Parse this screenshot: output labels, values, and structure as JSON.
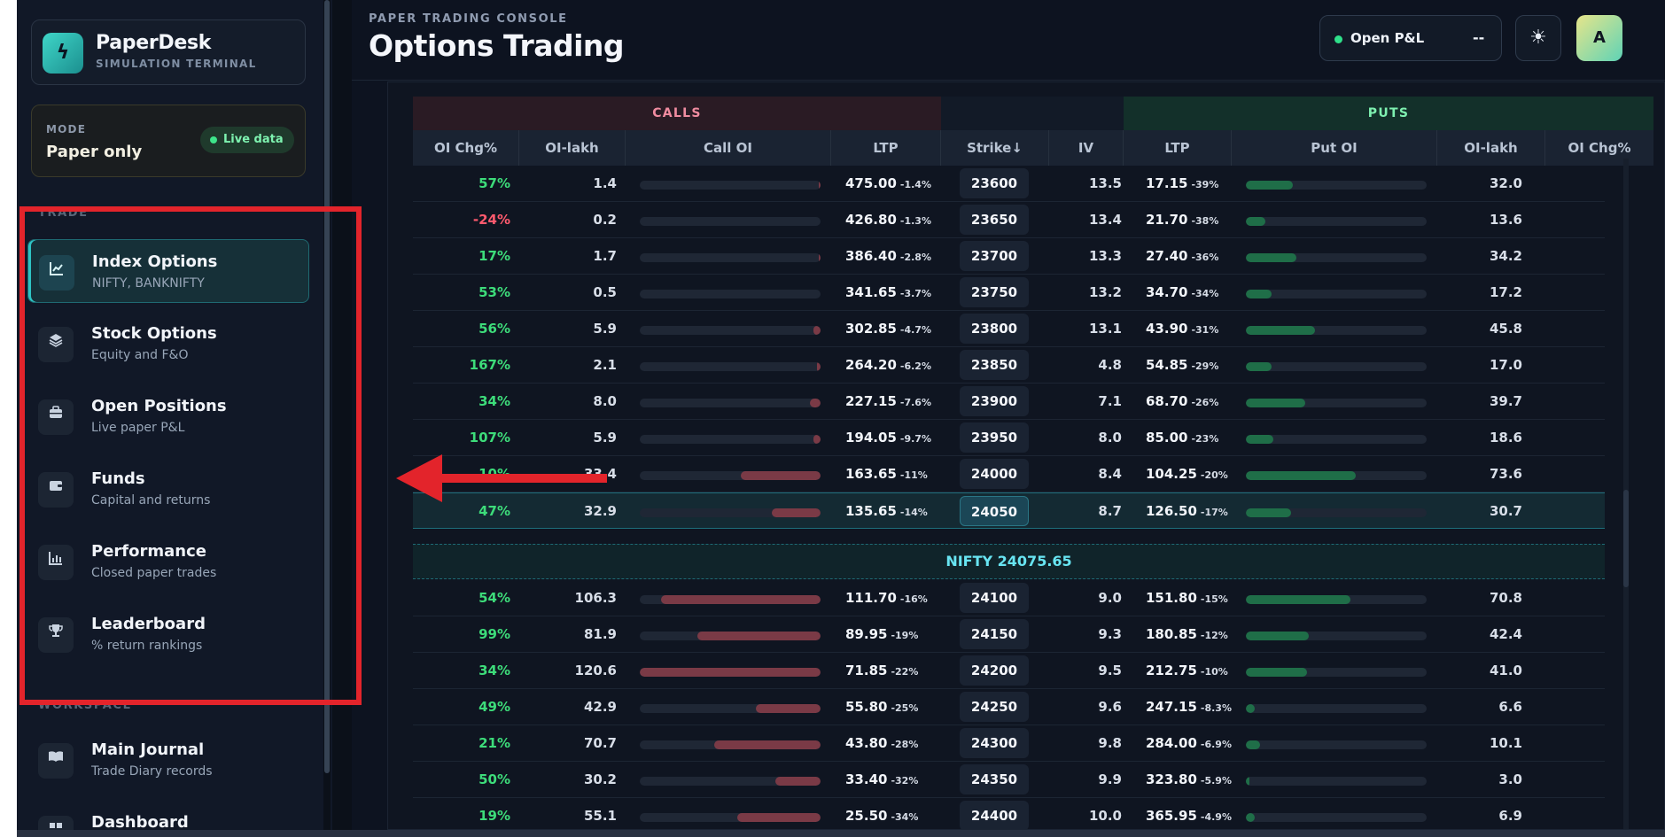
{
  "brand": {
    "name": "PaperDesk",
    "subtitle": "SIMULATION TERMINAL",
    "logo_icon": "bolt-icon"
  },
  "mode": {
    "label": "MODE",
    "value": "Paper only",
    "badge": "Live data"
  },
  "sidebar": {
    "trade_label": "TRADE",
    "workspace_label": "WORKSPACE",
    "trade_items": [
      {
        "title": "Index Options",
        "subtitle": "NIFTY, BANKNIFTY",
        "icon": "chart-line-icon",
        "active": true
      },
      {
        "title": "Stock Options",
        "subtitle": "Equity and F&O",
        "icon": "layers-icon",
        "active": false
      },
      {
        "title": "Open Positions",
        "subtitle": "Live paper P&L",
        "icon": "briefcase-icon",
        "active": false
      },
      {
        "title": "Funds",
        "subtitle": "Capital and returns",
        "icon": "wallet-icon",
        "active": false
      },
      {
        "title": "Performance",
        "subtitle": "Closed paper trades",
        "icon": "bar-chart-icon",
        "active": false
      },
      {
        "title": "Leaderboard",
        "subtitle": "% return rankings",
        "icon": "trophy-icon",
        "active": false
      }
    ],
    "workspace_items": [
      {
        "title": "Main Journal",
        "subtitle": "Trade Diary records",
        "icon": "book-icon"
      },
      {
        "title": "Dashboard",
        "subtitle": "",
        "icon": "dashboard-icon"
      }
    ]
  },
  "header": {
    "console_label": "PAPER TRADING CONSOLE",
    "title": "Options Trading",
    "pnl_label": "Open P&L",
    "pnl_value": "--",
    "avatar_letter": "A"
  },
  "chain": {
    "calls_label": "CALLS",
    "puts_label": "PUTS",
    "columns": [
      "OI Chg%",
      "OI-lakh",
      "Call OI",
      "LTP",
      "Strike↓",
      "IV",
      "LTP",
      "Put OI",
      "OI-lakh",
      "OI Chg%"
    ],
    "spot_label": "NIFTY 24075.65",
    "colors": {
      "positive": "#3ddc7a",
      "negative": "#ff5a6e",
      "call_bar": "#7a3a46",
      "put_bar": "#1f6e48"
    },
    "rows_above": [
      {
        "chg": "57%",
        "oi": "1.4",
        "call_bar": 0.01,
        "ltp": "475.00",
        "ltp_chg": "-1.4%",
        "strike": "23600",
        "iv": "13.5",
        "pltp": "17.15",
        "pltp_chg": "-39%",
        "put_bar": 0.26,
        "poi": "32.0"
      },
      {
        "chg": "-24%",
        "oi": "0.2",
        "call_bar": 0.0,
        "ltp": "426.80",
        "ltp_chg": "-1.3%",
        "strike": "23650",
        "iv": "13.4",
        "pltp": "21.70",
        "pltp_chg": "-38%",
        "put_bar": 0.11,
        "poi": "13.6"
      },
      {
        "chg": "17%",
        "oi": "1.7",
        "call_bar": 0.01,
        "ltp": "386.40",
        "ltp_chg": "-2.8%",
        "strike": "23700",
        "iv": "13.3",
        "pltp": "27.40",
        "pltp_chg": "-36%",
        "put_bar": 0.28,
        "poi": "34.2"
      },
      {
        "chg": "53%",
        "oi": "0.5",
        "call_bar": 0.0,
        "ltp": "341.65",
        "ltp_chg": "-3.7%",
        "strike": "23750",
        "iv": "13.2",
        "pltp": "34.70",
        "pltp_chg": "-34%",
        "put_bar": 0.14,
        "poi": "17.2"
      },
      {
        "chg": "56%",
        "oi": "5.9",
        "call_bar": 0.04,
        "ltp": "302.85",
        "ltp_chg": "-4.7%",
        "strike": "23800",
        "iv": "13.1",
        "pltp": "43.90",
        "pltp_chg": "-31%",
        "put_bar": 0.38,
        "poi": "45.8"
      },
      {
        "chg": "167%",
        "oi": "2.1",
        "call_bar": 0.02,
        "ltp": "264.20",
        "ltp_chg": "-6.2%",
        "strike": "23850",
        "iv": "4.8",
        "pltp": "54.85",
        "pltp_chg": "-29%",
        "put_bar": 0.14,
        "poi": "17.0"
      },
      {
        "chg": "34%",
        "oi": "8.0",
        "call_bar": 0.06,
        "ltp": "227.15",
        "ltp_chg": "-7.6%",
        "strike": "23900",
        "iv": "7.1",
        "pltp": "68.70",
        "pltp_chg": "-26%",
        "put_bar": 0.33,
        "poi": "39.7"
      },
      {
        "chg": "107%",
        "oi": "5.9",
        "call_bar": 0.04,
        "ltp": "194.05",
        "ltp_chg": "-9.7%",
        "strike": "23950",
        "iv": "8.0",
        "pltp": "85.00",
        "pltp_chg": "-23%",
        "put_bar": 0.15,
        "poi": "18.6"
      },
      {
        "chg": "10%",
        "oi": "33.4",
        "call_bar": 0.44,
        "ltp": "163.65",
        "ltp_chg": "-11%",
        "strike": "24000",
        "iv": "8.4",
        "pltp": "104.25",
        "pltp_chg": "-20%",
        "put_bar": 0.61,
        "poi": "73.6"
      },
      {
        "chg": "47%",
        "oi": "32.9",
        "call_bar": 0.27,
        "ltp": "135.65",
        "ltp_chg": "-14%",
        "strike": "24050",
        "iv": "8.7",
        "pltp": "126.50",
        "pltp_chg": "-17%",
        "put_bar": 0.25,
        "poi": "30.7"
      }
    ],
    "rows_below": [
      {
        "chg": "54%",
        "oi": "106.3",
        "call_bar": 0.88,
        "ltp": "111.70",
        "ltp_chg": "-16%",
        "strike": "24100",
        "iv": "9.0",
        "pltp": "151.80",
        "pltp_chg": "-15%",
        "put_bar": 0.58,
        "poi": "70.8"
      },
      {
        "chg": "99%",
        "oi": "81.9",
        "call_bar": 0.68,
        "ltp": "89.95",
        "ltp_chg": "-19%",
        "strike": "24150",
        "iv": "9.3",
        "pltp": "180.85",
        "pltp_chg": "-12%",
        "put_bar": 0.35,
        "poi": "42.4"
      },
      {
        "chg": "34%",
        "oi": "120.6",
        "call_bar": 1.0,
        "ltp": "71.85",
        "ltp_chg": "-22%",
        "strike": "24200",
        "iv": "9.5",
        "pltp": "212.75",
        "pltp_chg": "-10%",
        "put_bar": 0.34,
        "poi": "41.0"
      },
      {
        "chg": "49%",
        "oi": "42.9",
        "call_bar": 0.36,
        "ltp": "55.80",
        "ltp_chg": "-25%",
        "strike": "24250",
        "iv": "9.6",
        "pltp": "247.15",
        "pltp_chg": "-8.3%",
        "put_bar": 0.05,
        "poi": "6.6"
      },
      {
        "chg": "21%",
        "oi": "70.7",
        "call_bar": 0.59,
        "ltp": "43.80",
        "ltp_chg": "-28%",
        "strike": "24300",
        "iv": "9.8",
        "pltp": "284.00",
        "pltp_chg": "-6.9%",
        "put_bar": 0.08,
        "poi": "10.1"
      },
      {
        "chg": "50%",
        "oi": "30.2",
        "call_bar": 0.25,
        "ltp": "33.40",
        "ltp_chg": "-32%",
        "strike": "24350",
        "iv": "9.9",
        "pltp": "323.80",
        "pltp_chg": "-5.9%",
        "put_bar": 0.02,
        "poi": "3.0"
      },
      {
        "chg": "19%",
        "oi": "55.1",
        "call_bar": 0.46,
        "ltp": "25.50",
        "ltp_chg": "-34%",
        "strike": "24400",
        "iv": "10.0",
        "pltp": "365.95",
        "pltp_chg": "-4.9%",
        "put_bar": 0.05,
        "poi": "6.9"
      }
    ]
  }
}
